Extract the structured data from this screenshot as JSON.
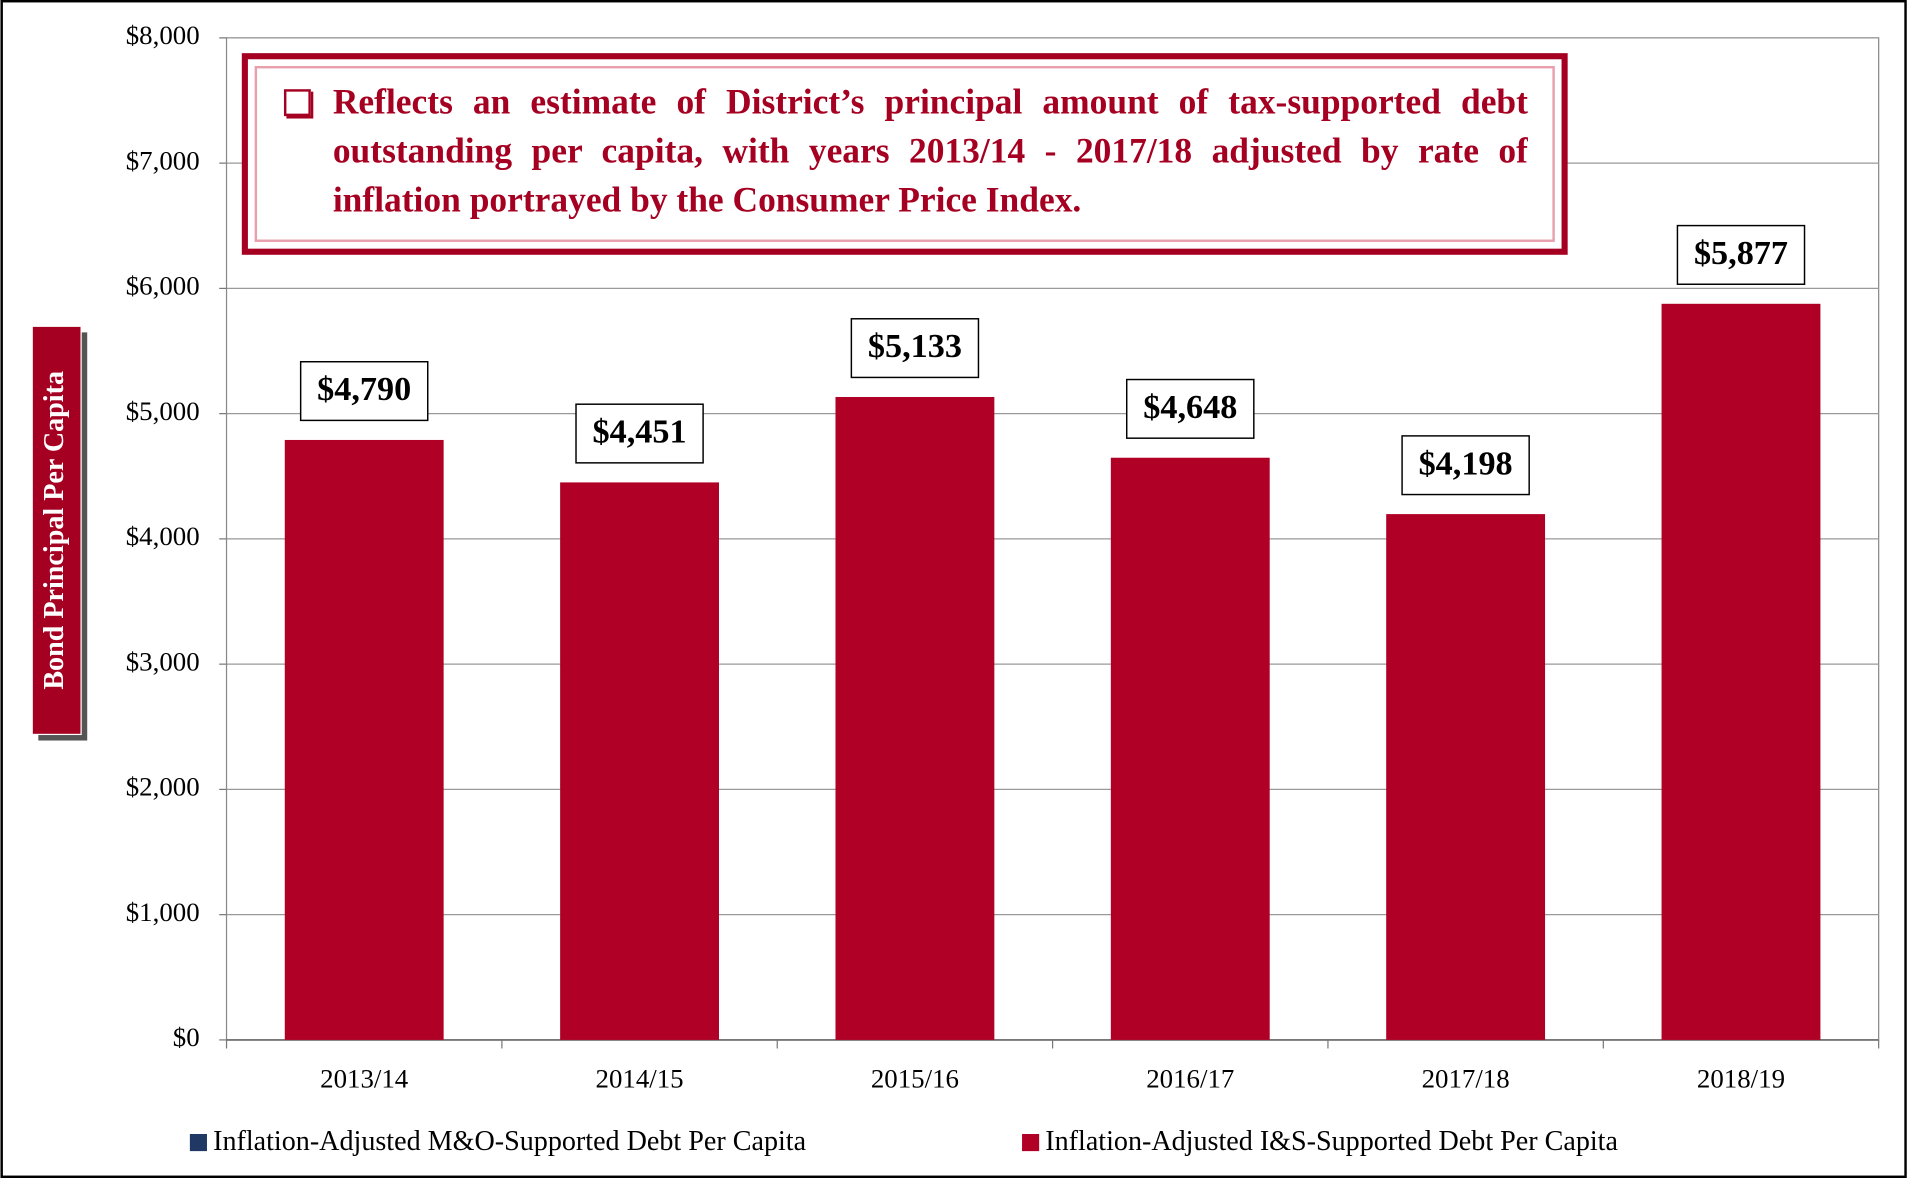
{
  "chart_data": {
    "type": "bar",
    "stacked": true,
    "annotation": "Reflects an estimate of District’s principal amount of tax-supported debt outstanding per capita, with years 2013/14 - 2017/18 adjusted by rate of inflation portrayed by the Consumer Price Index.",
    "ylabel": "Bond Principal Per Capita",
    "categories": [
      "2013/14",
      "2014/15",
      "2015/16",
      "2016/17",
      "2017/18",
      "2018/19"
    ],
    "series": [
      {
        "name": "Inflation-Adjusted M&O-Supported Debt Per Capita",
        "color": "#1f3864",
        "values": [
          0,
          0,
          0,
          0,
          0,
          0
        ]
      },
      {
        "name": "Inflation-Adjusted I&S-Supported Debt Per Capita",
        "color": "#b00026",
        "values": [
          4790,
          4451,
          5133,
          4648,
          4198,
          5877
        ],
        "value_labels": [
          "$4,790",
          "$4,451",
          "$5,133",
          "$4,648",
          "$4,198",
          "$5,877"
        ]
      }
    ],
    "ylim": [
      0,
      8000
    ],
    "yticks": [
      {
        "value": 0,
        "label": "$0"
      },
      {
        "value": 1000,
        "label": "$1,000"
      },
      {
        "value": 2000,
        "label": "$2,000"
      },
      {
        "value": 3000,
        "label": "$3,000"
      },
      {
        "value": 4000,
        "label": "$4,000"
      },
      {
        "value": 5000,
        "label": "$5,000"
      },
      {
        "value": 6000,
        "label": "$6,000"
      },
      {
        "value": 7000,
        "label": "$7,000"
      },
      {
        "value": 8000,
        "label": "$8,000"
      }
    ],
    "grid": true,
    "legend": "bottom"
  }
}
